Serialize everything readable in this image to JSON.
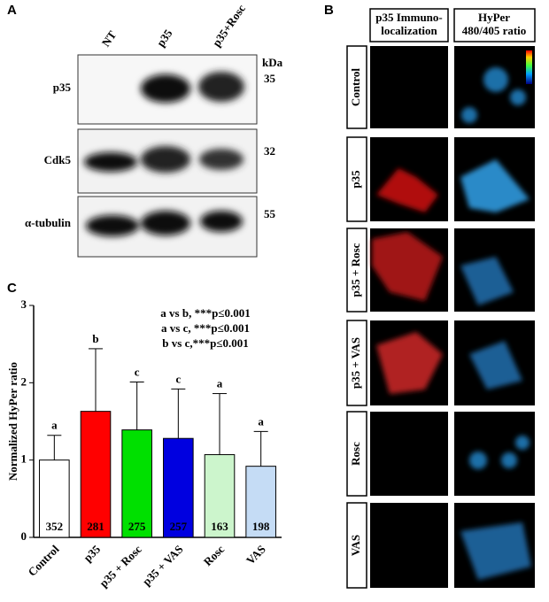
{
  "panel_a": {
    "label": "A",
    "columns": [
      "NT",
      "p35",
      "p35+Rosc"
    ],
    "unit": "kDa",
    "rows": [
      {
        "name": "p35",
        "kda": "35"
      },
      {
        "name": "Cdk5",
        "kda": "32"
      },
      {
        "name": "α-tubulin",
        "kda": "55"
      }
    ]
  },
  "panel_b": {
    "label": "B",
    "headers": [
      [
        "p35 Immuno-",
        "localization"
      ],
      [
        "HyPer",
        "480/405 ratio"
      ]
    ],
    "rows": [
      "Control",
      "p35",
      "p35 + Rosc",
      "p35 + VAS",
      "Rosc",
      "VAS"
    ]
  },
  "chart_data": {
    "type": "bar",
    "panel_label": "C",
    "ylabel": "Normalized HyPer ratio",
    "categories": [
      "Control",
      "p35",
      "p35 + Rosc",
      "p35 + VAS",
      "Rosc",
      "VAS"
    ],
    "values": [
      1.0,
      1.63,
      1.39,
      1.28,
      1.07,
      0.92
    ],
    "errors": [
      0.32,
      0.81,
      0.62,
      0.64,
      0.79,
      0.45
    ],
    "colors": [
      "#ffffff",
      "#ff0000",
      "#00e000",
      "#0000e0",
      "#ccf5cc",
      "#c5dcf5"
    ],
    "letters": [
      "a",
      "b",
      "c",
      "c",
      "a",
      "a"
    ],
    "counts": [
      "352",
      "281",
      "275",
      "257",
      "163",
      "198"
    ],
    "annotations": [
      "a vs b, ***p≤0.001",
      "a vs c, ***p≤0.001",
      "b vs c,***p≤0.001"
    ],
    "ylim": [
      0,
      3
    ],
    "yticks": [
      0,
      1,
      2,
      3
    ]
  }
}
